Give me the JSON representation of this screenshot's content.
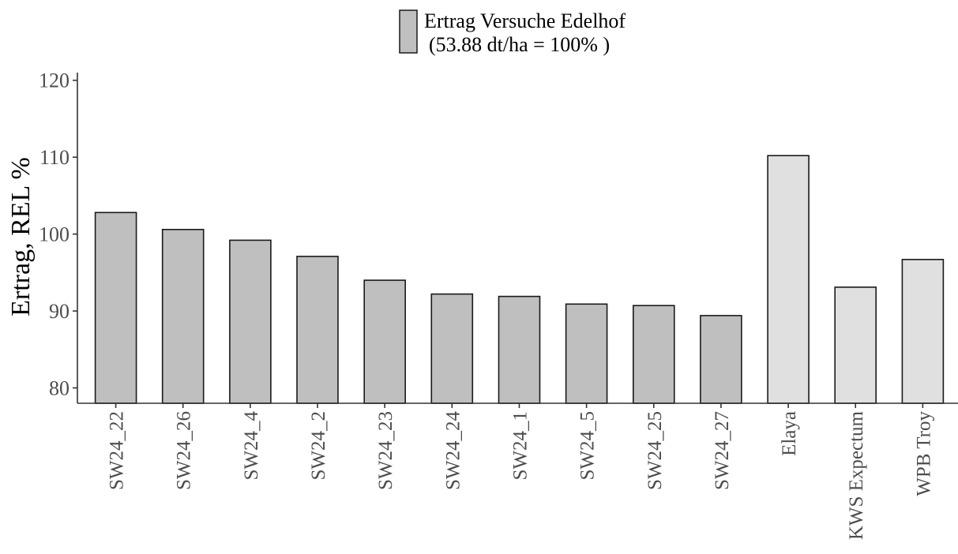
{
  "chart_data": {
    "type": "bar",
    "legend": {
      "position": "top-center",
      "entry_line1": "Ertrag Versuche Edelhof",
      "entry_line2": "(53.88 dt/ha = 100% )",
      "swatch_color": "#bfbfbf"
    },
    "ylabel": "Ertrag, REL %",
    "xlabel": "",
    "ylim": [
      78,
      121
    ],
    "yticks": [
      80,
      90,
      100,
      110,
      120
    ],
    "grid": false,
    "categories": [
      "SW24_22",
      "SW24_26",
      "SW24_4",
      "SW24_2",
      "SW24_23",
      "SW24_24",
      "SW24_1",
      "SW24_5",
      "SW24_25",
      "SW24_27",
      "Elaya",
      "KWS Expectum",
      "WPB Troy"
    ],
    "values": [
      102.8,
      100.6,
      99.2,
      97.1,
      94.0,
      92.2,
      91.9,
      90.9,
      90.7,
      89.4,
      110.2,
      93.1,
      96.7
    ],
    "groups": [
      "candidate",
      "candidate",
      "candidate",
      "candidate",
      "candidate",
      "candidate",
      "candidate",
      "candidate",
      "candidate",
      "candidate",
      "reference",
      "reference",
      "reference"
    ],
    "colors": {
      "candidate": "#bfbfbf",
      "reference": "#e0e0e0",
      "outline": "#1a1a1a",
      "axis": "#333333",
      "tick_text": "#4d4d4d",
      "label_text": "#000000"
    }
  }
}
